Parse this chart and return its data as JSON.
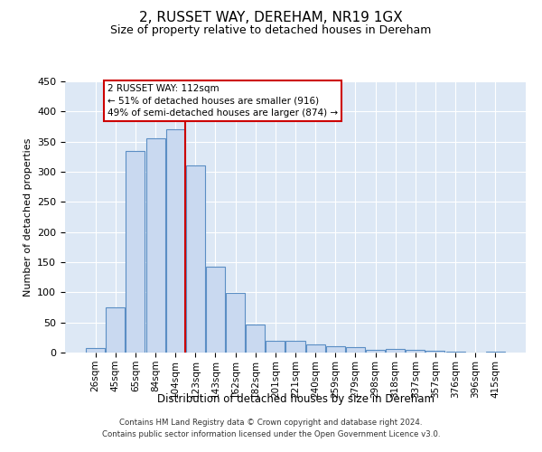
{
  "title": "2, RUSSET WAY, DEREHAM, NR19 1GX",
  "subtitle": "Size of property relative to detached houses in Dereham",
  "xlabel": "Distribution of detached houses by size in Dereham",
  "ylabel": "Number of detached properties",
  "bar_labels": [
    "26sqm",
    "45sqm",
    "65sqm",
    "84sqm",
    "104sqm",
    "123sqm",
    "143sqm",
    "162sqm",
    "182sqm",
    "201sqm",
    "221sqm",
    "240sqm",
    "259sqm",
    "279sqm",
    "298sqm",
    "318sqm",
    "337sqm",
    "357sqm",
    "376sqm",
    "396sqm",
    "415sqm"
  ],
  "bar_values": [
    7,
    75,
    335,
    355,
    370,
    310,
    143,
    99,
    46,
    19,
    19,
    13,
    10,
    9,
    4,
    6,
    5,
    3,
    1,
    0,
    2
  ],
  "bar_color": "#c9d9f0",
  "bar_edge_color": "#5b8ec4",
  "vline_color": "#cc0000",
  "vline_x_index": 4,
  "annotation_title": "2 RUSSET WAY: 112sqm",
  "annotation_line1": "← 51% of detached houses are smaller (916)",
  "annotation_line2": "49% of semi-detached houses are larger (874) →",
  "annotation_box_color": "#ffffff",
  "annotation_box_edge": "#cc0000",
  "ylim": [
    0,
    450
  ],
  "yticks": [
    0,
    50,
    100,
    150,
    200,
    250,
    300,
    350,
    400,
    450
  ],
  "background_color": "#dde8f5",
  "footer_line1": "Contains HM Land Registry data © Crown copyright and database right 2024.",
  "footer_line2": "Contains public sector information licensed under the Open Government Licence v3.0."
}
